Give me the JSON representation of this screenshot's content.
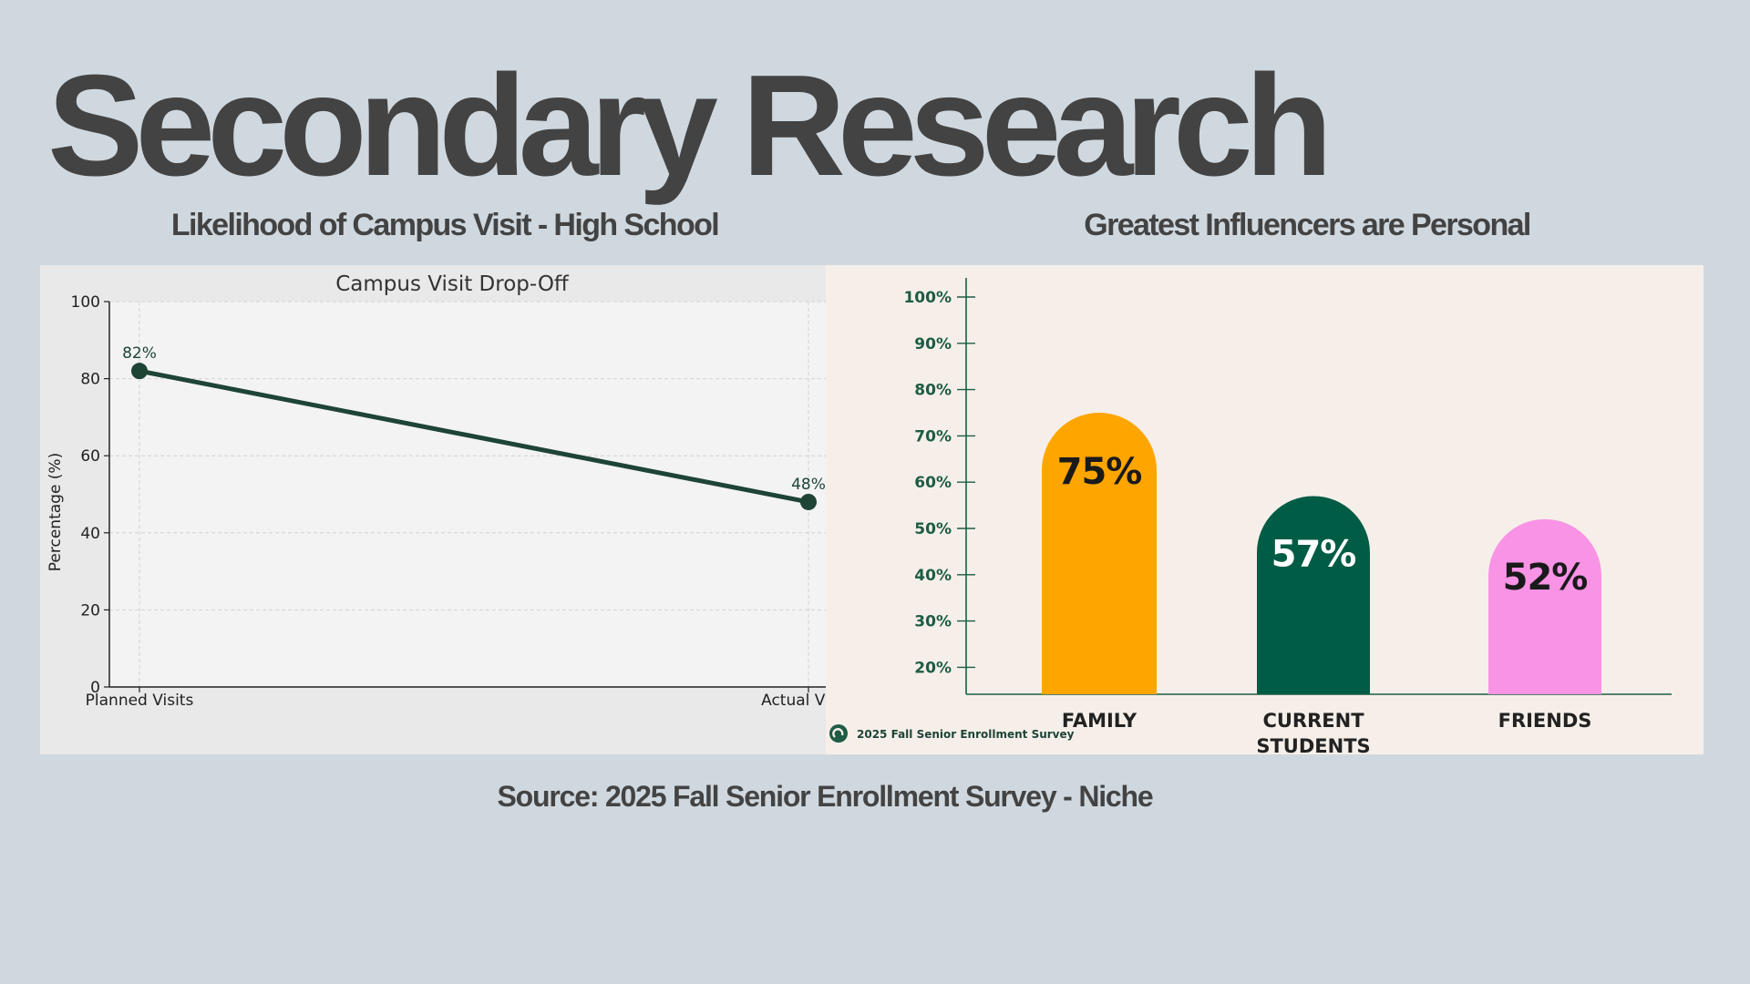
{
  "title": "Secondary Research",
  "subtitles": {
    "left": "Likelihood of Campus Visit - High School",
    "right": "Greatest Influencers are Personal"
  },
  "source": "Source: 2025 Fall Senior Enrollment Survey - Niche",
  "colors": {
    "background": "#d0d8df",
    "line": "#1e4436",
    "family": "#ffa500",
    "current_students": "#005c45",
    "friends": "#f993e6",
    "axis_green": "#1e5c44"
  },
  "chart_data": [
    {
      "type": "line",
      "title": "Campus Visit Drop-Off",
      "xlabel": "",
      "ylabel": "Percentage (%)",
      "categories": [
        "Planned Visits",
        "Actual Visits"
      ],
      "values": [
        82,
        48
      ],
      "labels": [
        "82%",
        "48%"
      ],
      "ylim": [
        0,
        100
      ],
      "yticks": [
        0,
        20,
        40,
        60,
        80,
        100
      ],
      "grid": true
    },
    {
      "type": "bar",
      "title": "",
      "categories": [
        "FAMILY",
        "CURRENT\nSTUDENTS",
        "FRIENDS"
      ],
      "values": [
        75,
        57,
        52
      ],
      "labels": [
        "75%",
        "57%",
        "52%"
      ],
      "bar_colors": [
        "#ffa500",
        "#005c45",
        "#f993e6"
      ],
      "label_colors": [
        "#1a1a1a",
        "#ffffff",
        "#1a1a1a"
      ],
      "yticks": [
        "20%",
        "30%",
        "40%",
        "50%",
        "60%",
        "70%",
        "80%",
        "90%",
        "100%"
      ],
      "watermark": "2025 Fall Senior Enrollment Survey"
    }
  ]
}
